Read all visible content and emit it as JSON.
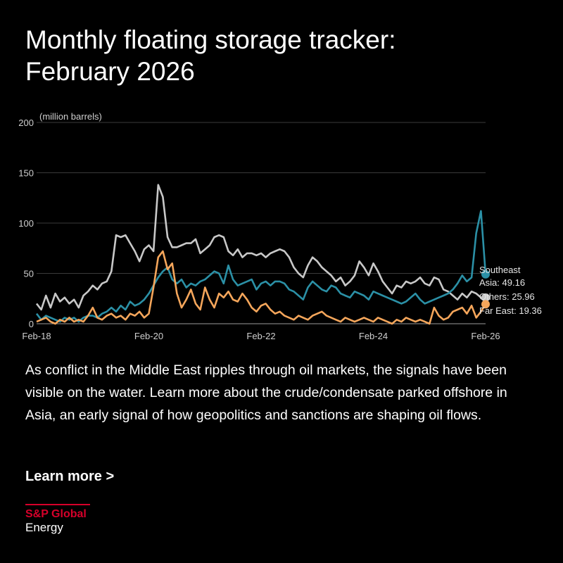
{
  "title_line1": "Monthly floating storage tracker:",
  "title_line2": "February 2026",
  "description": "As conflict in the Middle East ripples through oil markets, the signals have been visible on the water. Learn more about the crude/condensate parked offshore in Asia, an early signal of how geopolitics and sanctions are shaping oil flows.",
  "cta_label": "Learn more >",
  "logo": {
    "brand": "S&P Global",
    "sub": "Energy"
  },
  "chart_data": {
    "type": "line",
    "ylabel": "(million barrels)",
    "ylim": [
      0,
      200
    ],
    "yticks": [
      0,
      50,
      100,
      150,
      200
    ],
    "xlim": [
      0,
      96
    ],
    "xticks": [
      {
        "label": "Feb-18",
        "index": 0
      },
      {
        "label": "Feb-20",
        "index": 24
      },
      {
        "label": "Feb-22",
        "index": 48
      },
      {
        "label": "Feb-24",
        "index": 72
      },
      {
        "label": "Feb-26",
        "index": 96
      }
    ],
    "grid": true,
    "series": [
      {
        "name": "Others",
        "color": "#c8c8c8",
        "end_label": "Others: 25.96",
        "values": [
          20,
          14,
          28,
          16,
          30,
          22,
          26,
          20,
          24,
          16,
          28,
          32,
          38,
          34,
          40,
          42,
          52,
          88,
          86,
          88,
          80,
          72,
          62,
          74,
          78,
          72,
          138,
          126,
          86,
          76,
          76,
          78,
          80,
          80,
          84,
          70,
          74,
          78,
          86,
          88,
          86,
          72,
          68,
          74,
          66,
          70,
          70,
          68,
          70,
          66,
          70,
          72,
          74,
          72,
          66,
          56,
          50,
          46,
          58,
          66,
          62,
          56,
          52,
          48,
          42,
          46,
          38,
          42,
          48,
          62,
          56,
          48,
          60,
          52,
          42,
          36,
          30,
          38,
          36,
          42,
          40,
          42,
          46,
          40,
          38,
          46,
          44,
          34,
          32,
          28,
          24,
          30,
          26,
          32,
          30,
          26,
          25.96
        ]
      },
      {
        "name": "Southeast Asia",
        "color": "#2b90a6",
        "end_label_lines": [
          "Southeast",
          "Asia: 49.16"
        ],
        "values": [
          10,
          4,
          8,
          6,
          4,
          2,
          6,
          4,
          6,
          2,
          6,
          8,
          8,
          6,
          10,
          12,
          16,
          12,
          18,
          14,
          22,
          18,
          20,
          24,
          30,
          38,
          46,
          52,
          56,
          44,
          40,
          44,
          36,
          40,
          38,
          42,
          44,
          48,
          52,
          50,
          40,
          58,
          44,
          38,
          40,
          42,
          44,
          34,
          40,
          42,
          38,
          42,
          42,
          40,
          34,
          32,
          28,
          24,
          36,
          42,
          38,
          34,
          32,
          38,
          36,
          30,
          28,
          26,
          32,
          30,
          28,
          24,
          32,
          30,
          28,
          26,
          24,
          22,
          20,
          22,
          26,
          30,
          24,
          20,
          22,
          24,
          26,
          28,
          30,
          34,
          40,
          48,
          42,
          46,
          90,
          112,
          49.16
        ]
      },
      {
        "name": "Far East",
        "color": "#f5a65b",
        "end_label": "Far East: 19.36",
        "values": [
          2,
          4,
          6,
          2,
          0,
          4,
          2,
          6,
          2,
          4,
          2,
          8,
          16,
          6,
          4,
          8,
          10,
          6,
          8,
          4,
          10,
          8,
          12,
          6,
          10,
          36,
          66,
          72,
          54,
          60,
          30,
          16,
          24,
          34,
          20,
          14,
          36,
          24,
          16,
          30,
          26,
          32,
          24,
          22,
          30,
          24,
          16,
          12,
          18,
          20,
          14,
          10,
          12,
          8,
          6,
          4,
          8,
          6,
          4,
          8,
          10,
          12,
          8,
          6,
          4,
          2,
          6,
          4,
          2,
          4,
          6,
          4,
          2,
          6,
          4,
          2,
          0,
          4,
          2,
          6,
          4,
          2,
          4,
          2,
          0,
          16,
          8,
          4,
          6,
          12,
          14,
          16,
          10,
          18,
          6,
          12,
          19.36
        ]
      }
    ]
  }
}
